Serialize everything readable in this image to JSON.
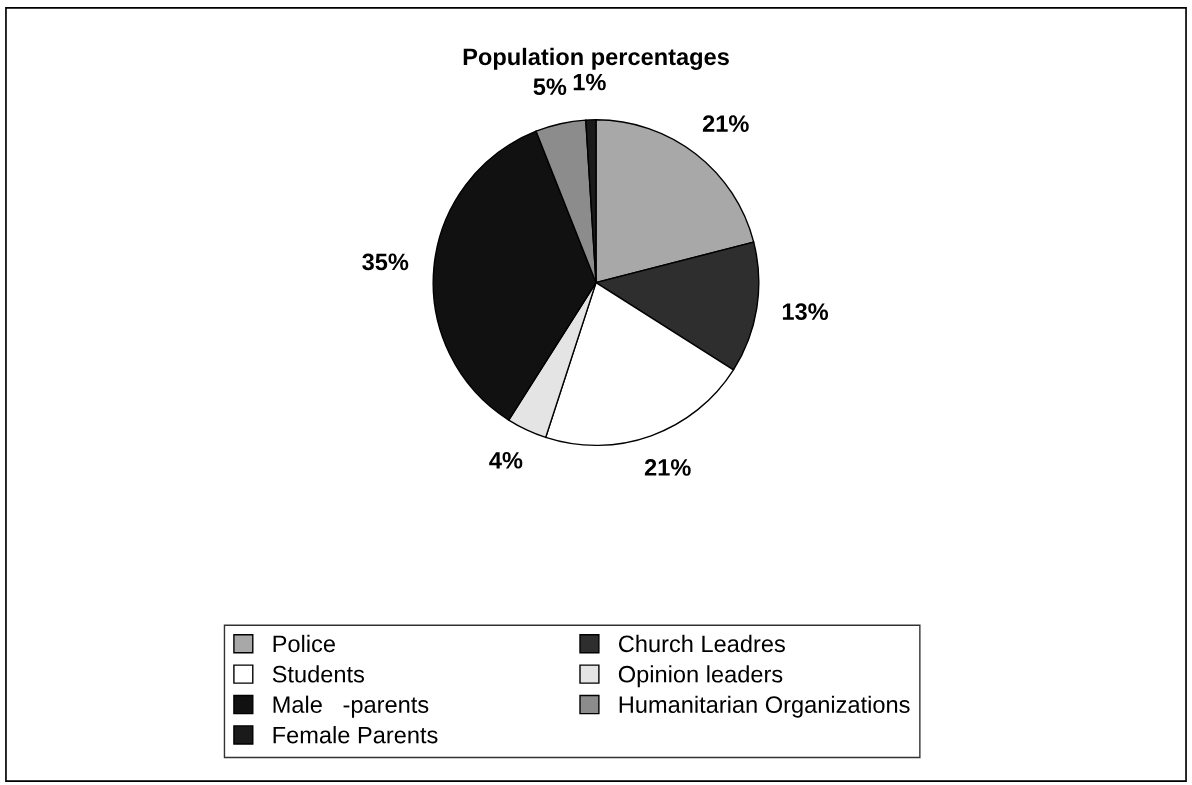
{
  "chart_data": {
    "type": "pie",
    "title": "Population percentages",
    "categories": [
      "Police",
      "Church Leadres",
      "Students",
      "Opinion leaders",
      "Male   -parents",
      "Humanitarian Organizations",
      "Female Parents"
    ],
    "values": [
      21,
      13,
      21,
      4,
      35,
      5,
      1
    ],
    "value_labels": [
      "21%",
      "13%",
      "21%",
      "4%",
      "35%",
      "5%",
      "1%"
    ],
    "colors": [
      "#a8a8a8",
      "#2e2e2e",
      "#ffffff",
      "#e4e4e4",
      "#111111",
      "#8c8c8c",
      "#1a1a1a"
    ],
    "legend": "bottom"
  }
}
